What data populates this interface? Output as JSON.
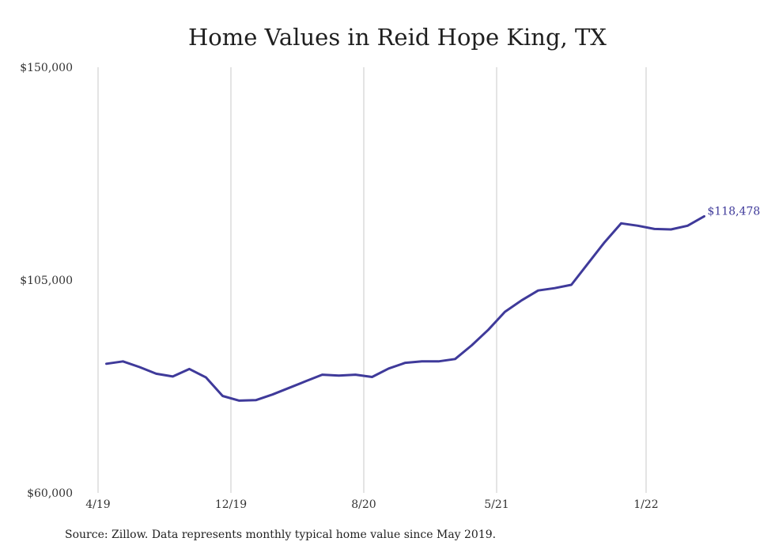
{
  "chart_data": {
    "type": "line",
    "title": "Home Values in Reid Hope King, TX",
    "xlabel": "",
    "ylabel": "",
    "ylim": [
      60000,
      150000
    ],
    "yticks": [
      "$150,000",
      "$105,000",
      "$60,000"
    ],
    "ytick_values": [
      150000,
      105000,
      60000
    ],
    "xticks": [
      {
        "label": "4/19",
        "month": 0
      },
      {
        "label": "12/19",
        "month": 8
      },
      {
        "label": "8/20",
        "month": 16
      },
      {
        "label": "5/21",
        "month": 24
      },
      {
        "label": "1/22",
        "month": 33
      }
    ],
    "grid": "vertical",
    "series": [
      {
        "color": "#3f3a9a",
        "points": [
          {
            "month": 0.5,
            "value": 87300
          },
          {
            "month": 1.5,
            "value": 87800
          },
          {
            "month": 2.5,
            "value": 86600
          },
          {
            "month": 3.5,
            "value": 85200
          },
          {
            "month": 4.5,
            "value": 84600
          },
          {
            "month": 5.5,
            "value": 86200
          },
          {
            "month": 6.5,
            "value": 84400
          },
          {
            "month": 7.5,
            "value": 80500
          },
          {
            "month": 8.5,
            "value": 79500
          },
          {
            "month": 9.5,
            "value": 79600
          },
          {
            "month": 10.5,
            "value": 80800
          },
          {
            "month": 11.5,
            "value": 82200
          },
          {
            "month": 12.5,
            "value": 83600
          },
          {
            "month": 13.5,
            "value": 85000
          },
          {
            "month": 14.5,
            "value": 84800
          },
          {
            "month": 15.5,
            "value": 85000
          },
          {
            "month": 16.5,
            "value": 84500
          },
          {
            "month": 17.5,
            "value": 86300
          },
          {
            "month": 18.5,
            "value": 87500
          },
          {
            "month": 19.5,
            "value": 87800
          },
          {
            "month": 20.5,
            "value": 87800
          },
          {
            "month": 21.5,
            "value": 88300
          },
          {
            "month": 22.5,
            "value": 91200
          },
          {
            "month": 23.5,
            "value": 94500
          },
          {
            "month": 24.5,
            "value": 98300
          },
          {
            "month": 25.5,
            "value": 100700
          },
          {
            "month": 26.5,
            "value": 102800
          },
          {
            "month": 27.5,
            "value": 103300
          },
          {
            "month": 28.5,
            "value": 104000
          },
          {
            "month": 29.5,
            "value": 108500
          },
          {
            "month": 30.5,
            "value": 113000
          },
          {
            "month": 31.5,
            "value": 117000
          },
          {
            "month": 32.5,
            "value": 116500
          },
          {
            "month": 33.5,
            "value": 115800
          },
          {
            "month": 34.5,
            "value": 115700
          },
          {
            "month": 35.5,
            "value": 116500
          },
          {
            "month": 36.5,
            "value": 118478
          }
        ],
        "end_label": "$118,478"
      }
    ]
  },
  "source_note": "Source: Zillow. Data represents monthly typical home value since May 2019."
}
